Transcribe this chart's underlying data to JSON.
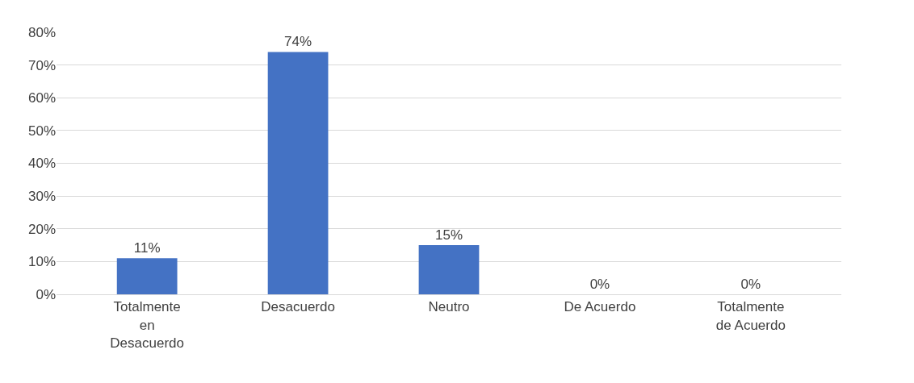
{
  "chart_data": {
    "type": "bar",
    "categories": [
      "Totalmente en Desacuerdo",
      "Desacuerdo",
      "Neutro",
      "De Acuerdo",
      "Totalmente de Acuerdo"
    ],
    "values": [
      11,
      74,
      15,
      0,
      0
    ],
    "color": "#4472c4",
    "value_labels": [
      "11%",
      "74%",
      "15%",
      "0%",
      "0%"
    ],
    "ylim": [
      0,
      80
    ],
    "yticks": [
      {
        "value": 0,
        "label": "0%"
      },
      {
        "value": 10,
        "label": "10%"
      },
      {
        "value": 20,
        "label": "20%"
      },
      {
        "value": 30,
        "label": "30%"
      },
      {
        "value": 40,
        "label": "40%"
      },
      {
        "value": 50,
        "label": "50%"
      },
      {
        "value": 60,
        "label": "60%"
      },
      {
        "value": 70,
        "label": "70%"
      },
      {
        "value": 80,
        "label": "80%"
      }
    ],
    "grid": "y"
  }
}
